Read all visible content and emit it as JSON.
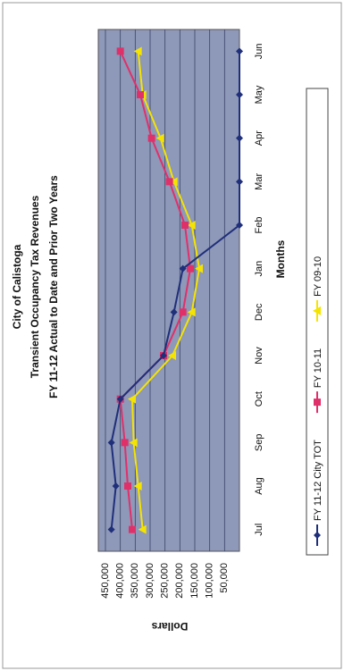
{
  "chart_data": {
    "type": "line",
    "title": "City of Calistoga",
    "subtitle": "Transient Occupancy Tax Revenues",
    "subtitle2": "FY 11-12 Actual to Date and Prior Two Years",
    "x_label": "Months",
    "y_label": "Dollars",
    "categories": [
      "Jul",
      "Aug",
      "Sep",
      "Oct",
      "Nov",
      "Dec",
      "Jan",
      "Feb",
      "Mar",
      "Apr",
      "May",
      "Jun"
    ],
    "series": [
      {
        "name": "FY 11-12 City TOT",
        "color": "#1f2f7a",
        "marker": "diamond",
        "values": [
          430000,
          415000,
          430000,
          400000,
          255000,
          220000,
          190000,
          0,
          0,
          0,
          0,
          0
        ]
      },
      {
        "name": "FY 10-11",
        "color": "#e0306a",
        "marker": "square",
        "values": [
          360000,
          375000,
          385000,
          400000,
          255000,
          190000,
          165000,
          183000,
          235000,
          295000,
          333000,
          400000
        ]
      },
      {
        "name": "FY 09-10",
        "color": "#f5e400",
        "marker": "triangle",
        "values": [
          325000,
          340000,
          355000,
          360000,
          225000,
          160000,
          135000,
          160000,
          220000,
          265000,
          325000,
          340000
        ]
      }
    ],
    "ylim": [
      0,
      450000
    ],
    "yticks": [
      {
        "value": 50000,
        "label": "50,000"
      },
      {
        "value": 100000,
        "label": "100,000"
      },
      {
        "value": 150000,
        "label": "150,000"
      },
      {
        "value": 200000,
        "label": "200,000"
      },
      {
        "value": 250000,
        "label": "250,000"
      },
      {
        "value": 300000,
        "label": "300,000"
      },
      {
        "value": 350000,
        "label": "350,000"
      },
      {
        "value": 400000,
        "label": "400,000"
      },
      {
        "value": 450000,
        "label": "450,000"
      }
    ],
    "grid": true,
    "legend": "bottom"
  }
}
